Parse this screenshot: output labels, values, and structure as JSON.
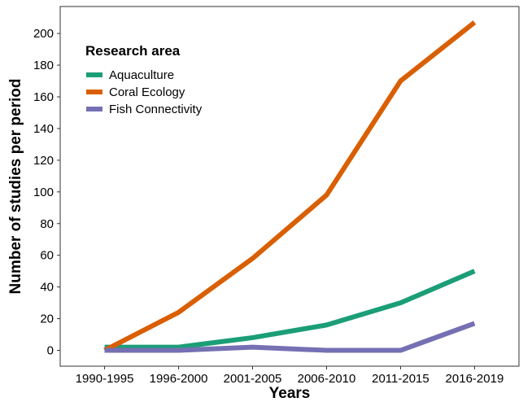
{
  "chart_data": {
    "type": "line",
    "xlabel": "Years",
    "ylabel": "Number of studies per period",
    "categories": [
      "1990-1995",
      "1996-2000",
      "2001-2005",
      "2006-2010",
      "2011-2015",
      "2016-2019"
    ],
    "ylim": [
      -10,
      217
    ],
    "yticks": [
      0,
      20,
      40,
      60,
      80,
      100,
      120,
      140,
      160,
      180,
      200
    ],
    "grid": false,
    "legend": {
      "title": "Research area",
      "position": "top-left"
    },
    "series": [
      {
        "name": "Aquaculture",
        "color": "#1b9e77",
        "values": [
          2,
          2,
          8,
          16,
          30,
          50
        ]
      },
      {
        "name": "Coral Ecology",
        "color": "#d95f02",
        "values": [
          0,
          24,
          58,
          98,
          170,
          207
        ]
      },
      {
        "name": "Fish Connectivity",
        "color": "#7570b3",
        "values": [
          0,
          0,
          2,
          0,
          0,
          17
        ]
      }
    ]
  }
}
